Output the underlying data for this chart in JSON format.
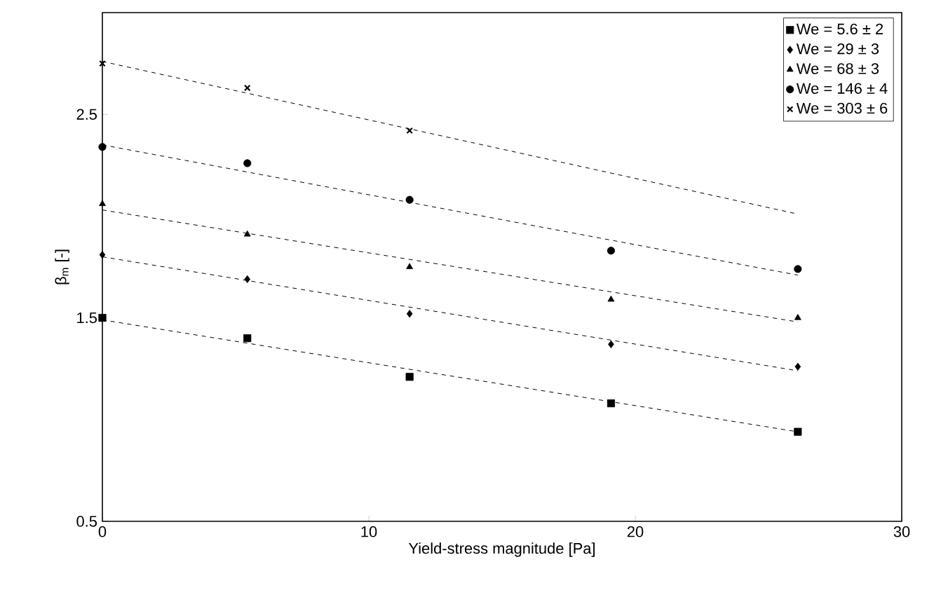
{
  "chart_data": {
    "type": "scatter",
    "xlabel": "Yield-stress magnitude [Pa]",
    "ylabel": "β$_{m}$ [-]",
    "xlim": [
      0,
      30
    ],
    "ylim": [
      0.5,
      3
    ],
    "xticks": [
      0,
      10,
      20,
      30
    ],
    "yticks": [
      0.5,
      1.5,
      2.5
    ],
    "grid": false,
    "legend": "top right",
    "series": [
      {
        "name": "We = 5.6 ± 2",
        "marker": "square",
        "color": "#000000",
        "x": [
          0,
          5.44,
          11.53,
          19.09,
          26.1
        ],
        "values": [
          1.5,
          1.4,
          1.21,
          1.08,
          0.94
        ]
      },
      {
        "name": "We = 29 ± 3",
        "marker": "diamond",
        "color": "#000000",
        "x": [
          0,
          5.44,
          11.53,
          19.09,
          26.1
        ],
        "values": [
          1.81,
          1.69,
          1.52,
          1.37,
          1.26
        ]
      },
      {
        "name": "We = 68 ± 3",
        "marker": "triangle",
        "color": "#000000",
        "x": [
          0,
          5.44,
          11.53,
          19.09,
          26.1
        ],
        "values": [
          2.06,
          1.91,
          1.75,
          1.59,
          1.5
        ]
      },
      {
        "name": "We = 146 ± 4",
        "marker": "circle",
        "color": "#000000",
        "x": [
          0,
          5.44,
          11.53,
          19.09,
          26.1
        ],
        "values": [
          2.34,
          2.26,
          2.08,
          1.83,
          1.74
        ]
      },
      {
        "name": "We = 303 ± 6",
        "marker": "cross",
        "color": "#000000",
        "x": [
          0,
          5.44,
          11.53
        ],
        "values": [
          2.75,
          2.63,
          2.42
        ]
      },
      {
        "type": "line",
        "line_style": "dashed",
        "marker": "none",
        "color": "#000000",
        "x": [
          0,
          26.1
        ],
        "values": [
          1.49,
          0.94
        ]
      },
      {
        "type": "line",
        "line_style": "dashed",
        "marker": "none",
        "color": "#000000",
        "x": [
          0,
          26.1
        ],
        "values": [
          1.8,
          1.24
        ]
      },
      {
        "type": "line",
        "line_style": "dashed",
        "marker": "none",
        "color": "#000000",
        "x": [
          0,
          26.1
        ],
        "values": [
          2.03,
          1.48
        ]
      },
      {
        "type": "line",
        "line_style": "dashed",
        "marker": "none",
        "color": "#000000",
        "x": [
          0,
          26.1
        ],
        "values": [
          2.35,
          1.71
        ]
      },
      {
        "type": "line",
        "line_style": "dashed",
        "marker": "none",
        "color": "#000000",
        "x": [
          0,
          26.1
        ],
        "values": [
          2.76,
          2.01
        ]
      }
    ]
  }
}
